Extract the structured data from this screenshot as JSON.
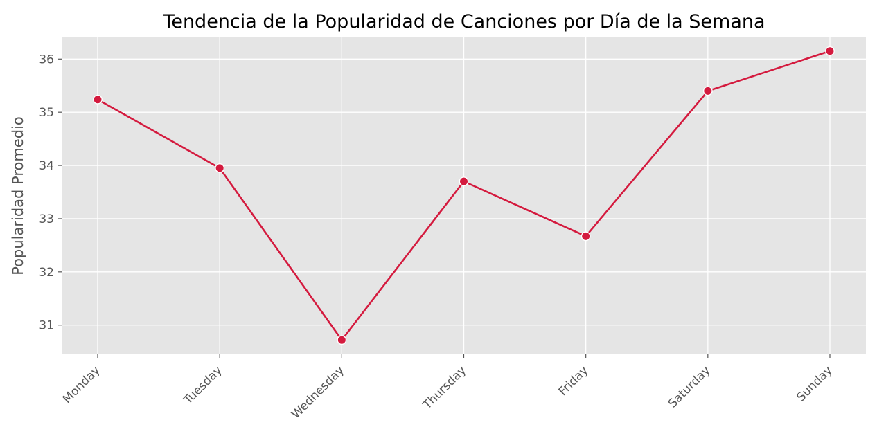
{
  "chart_data": {
    "type": "line",
    "title": "Tendencia de la Popularidad de Canciones por Día de la Semana",
    "xlabel": "",
    "ylabel": "Popularidad Promedio",
    "categories": [
      "Monday",
      "Tuesday",
      "Wednesday",
      "Thursday",
      "Friday",
      "Saturday",
      "Sunday"
    ],
    "series": [
      {
        "values": [
          35.24,
          33.95,
          30.72,
          33.7,
          32.67,
          35.4,
          36.15
        ]
      }
    ],
    "ylim": [
      30.45,
      36.42
    ],
    "yticks": [
      31,
      32,
      33,
      34,
      35,
      36
    ],
    "grid": true,
    "legend": "none",
    "colors": {
      "line": "#d41a3e",
      "marker_edge": "#ffffff",
      "plot_background": "#e5e5e5",
      "grid": "#ffffff"
    }
  }
}
